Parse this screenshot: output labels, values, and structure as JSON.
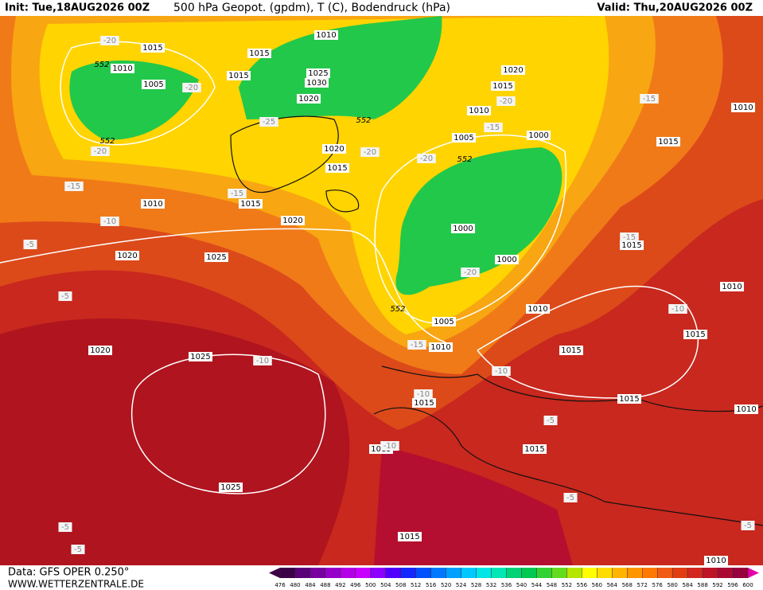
{
  "header": {
    "init": "Init: Tue,18AUG2026 00Z",
    "title": "500 hPa Geopot. (gpdm), T (C), Bodendruck (hPa)",
    "valid": "Valid: Thu,20AUG2026 00Z"
  },
  "footer": {
    "data": "Data: GFS OPER 0.250°",
    "site": "WWW.WETTERZENTRALE.DE"
  },
  "legend": {
    "values": [
      476,
      480,
      484,
      488,
      492,
      496,
      500,
      504,
      508,
      512,
      516,
      520,
      524,
      528,
      532,
      536,
      540,
      544,
      548,
      552,
      556,
      560,
      564,
      568,
      572,
      576,
      580,
      584,
      588,
      592,
      596,
      600
    ],
    "colors": [
      "#3c0046",
      "#5a0078",
      "#7800a0",
      "#9600c8",
      "#b400e6",
      "#c800ff",
      "#8c00ff",
      "#5000ff",
      "#1428ff",
      "#0050ff",
      "#0078ff",
      "#00a0ff",
      "#00c8ff",
      "#00e6e6",
      "#00e6b4",
      "#00d278",
      "#00c850",
      "#32d232",
      "#64dc1e",
      "#b4e600",
      "#ffff00",
      "#ffdc00",
      "#ffb400",
      "#ff9600",
      "#ff7800",
      "#f05a14",
      "#e13c14",
      "#d2281e",
      "#be1428",
      "#aa0a32",
      "#96003c"
    ],
    "arrow_colors": [
      "#3c0046",
      "#e600aa"
    ]
  },
  "pressure_labels": [
    "1015",
    "1010",
    "1015",
    "1010",
    "1005",
    "1025",
    "1030",
    "1020",
    "1015",
    "1020",
    "1015",
    "1010",
    "1015",
    "1020",
    "1025",
    "1020",
    "1020",
    "1025",
    "1025",
    "1005",
    "1000",
    "1000",
    "1000",
    "1005",
    "1010",
    "1010",
    "1015",
    "1015",
    "1015",
    "1015",
    "1015",
    "1015",
    "1010",
    "1015",
    "1015",
    "1010",
    "1020",
    "1015",
    "1010",
    "1010",
    "1015",
    "1010"
  ],
  "temperature_labels": [
    "-20",
    "-20",
    "-25",
    "-20",
    "-20",
    "-20",
    "-15",
    "-15",
    "-15",
    "-15",
    "-10",
    "-5",
    "-5",
    "-10",
    "-10",
    "-10",
    "-15",
    "-20",
    "-15",
    "-10",
    "-10",
    "-5",
    "-5",
    "-5",
    "-5",
    "-5",
    "-20"
  ],
  "height_labels": [
    "552",
    "552",
    "552",
    "552",
    "552"
  ]
}
